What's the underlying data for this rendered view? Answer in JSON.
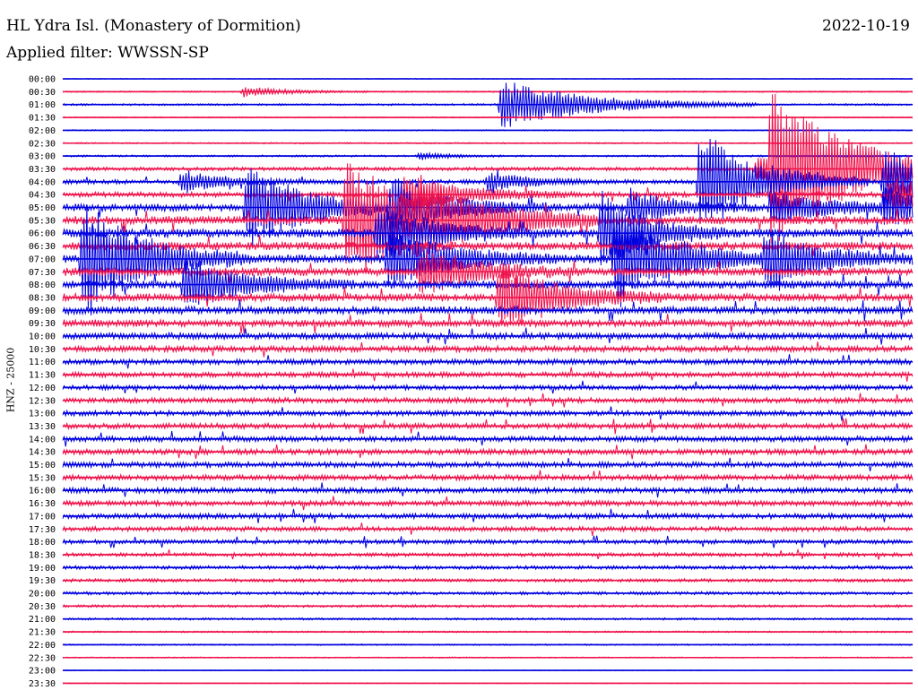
{
  "header": {
    "station": "HL Ydra Isl. (Monastery of Dormition)",
    "date": "2022-10-19",
    "filter": "Applied filter: WWSSN-SP",
    "channel_label": "HNZ - 25000"
  },
  "chart_data": {
    "type": "line",
    "subtype": "helicorder",
    "title": "HL Ydra Isl. (Monastery of Dormition)",
    "date": "2022-10-19",
    "filter": "WWSSN-SP",
    "ylabel": "HNZ - 25000",
    "trace_colors": [
      "#0000e0",
      "#f0104a"
    ],
    "row_minutes": 30,
    "y_tick_labels": [
      "00:00",
      "00:30",
      "01:00",
      "01:30",
      "02:00",
      "02:30",
      "03:00",
      "03:30",
      "04:00",
      "04:30",
      "05:00",
      "05:30",
      "06:00",
      "06:30",
      "07:00",
      "07:30",
      "08:00",
      "08:30",
      "09:00",
      "09:30",
      "10:00",
      "10:30",
      "11:00",
      "11:30",
      "12:00",
      "12:30",
      "13:00",
      "13:30",
      "14:00",
      "14:30",
      "15:00",
      "15:30",
      "16:00",
      "16:30",
      "17:00",
      "17:30",
      "18:00",
      "18:30",
      "19:00",
      "19:30",
      "20:00",
      "20:30",
      "21:00",
      "21:30",
      "22:00",
      "22:30",
      "23:00",
      "23:30"
    ],
    "row_noise_level": [
      0.4,
      0.6,
      0.8,
      0.5,
      0.5,
      0.6,
      0.8,
      1.5,
      1.8,
      2.2,
      3.0,
      3.5,
      3.6,
      3.4,
      3.6,
      3.4,
      3.3,
      3.3,
      3.2,
      3.0,
      2.7,
      2.5,
      2.3,
      2.2,
      2.0,
      2.2,
      2.2,
      2.3,
      2.3,
      2.3,
      2.3,
      2.3,
      2.3,
      2.2,
      2.2,
      2.0,
      1.8,
      1.6,
      1.5,
      1.4,
      1.3,
      1.1,
      0.9,
      0.7,
      0.6,
      0.5,
      0.4,
      0.4
    ],
    "events": [
      {
        "row": 1,
        "minute": 6.4,
        "amp": 6,
        "dur": 1.5
      },
      {
        "row": 2,
        "minute": 15.5,
        "amp": 28,
        "dur": 3
      },
      {
        "row": 6,
        "minute": 12.6,
        "amp": 4,
        "dur": 1
      },
      {
        "row": 7,
        "minute": 25.0,
        "amp": 85,
        "dur": 2.5
      },
      {
        "row": 7,
        "minute": 24.5,
        "amp": 12,
        "dur": 4
      },
      {
        "row": 8,
        "minute": 4.2,
        "amp": 12,
        "dur": 1.5
      },
      {
        "row": 8,
        "minute": 15.0,
        "amp": 10,
        "dur": 1.5
      },
      {
        "row": 8,
        "minute": 22.5,
        "amp": 60,
        "dur": 2
      },
      {
        "row": 8,
        "minute": 29.0,
        "amp": 38,
        "dur": 2
      },
      {
        "row": 9,
        "minute": 12.0,
        "amp": 22,
        "dur": 2
      },
      {
        "row": 9,
        "minute": 29.2,
        "amp": 18,
        "dur": 2
      },
      {
        "row": 10,
        "minute": 6.5,
        "amp": 48,
        "dur": 2
      },
      {
        "row": 10,
        "minute": 11.6,
        "amp": 30,
        "dur": 2
      },
      {
        "row": 10,
        "minute": 20.0,
        "amp": 20,
        "dur": 1.5
      },
      {
        "row": 10,
        "minute": 25.0,
        "amp": 18,
        "dur": 2
      },
      {
        "row": 10,
        "minute": 29.0,
        "amp": 20,
        "dur": 2
      },
      {
        "row": 11,
        "minute": 10.0,
        "amp": 65,
        "dur": 3
      },
      {
        "row": 11,
        "minute": 12.4,
        "amp": 20,
        "dur": 2
      },
      {
        "row": 12,
        "minute": 11.1,
        "amp": 30,
        "dur": 2
      },
      {
        "row": 12,
        "minute": 19.0,
        "amp": 45,
        "dur": 1.5
      },
      {
        "row": 14,
        "minute": 0.7,
        "amp": 70,
        "dur": 2
      },
      {
        "row": 14,
        "minute": 11.5,
        "amp": 35,
        "dur": 2
      },
      {
        "row": 14,
        "minute": 19.5,
        "amp": 55,
        "dur": 2
      },
      {
        "row": 14,
        "minute": 24.8,
        "amp": 30,
        "dur": 2
      },
      {
        "row": 15,
        "minute": 12.6,
        "amp": 25,
        "dur": 2
      },
      {
        "row": 16,
        "minute": 4.3,
        "amp": 30,
        "dur": 2
      },
      {
        "row": 17,
        "minute": 15.4,
        "amp": 40,
        "dur": 2
      }
    ]
  }
}
